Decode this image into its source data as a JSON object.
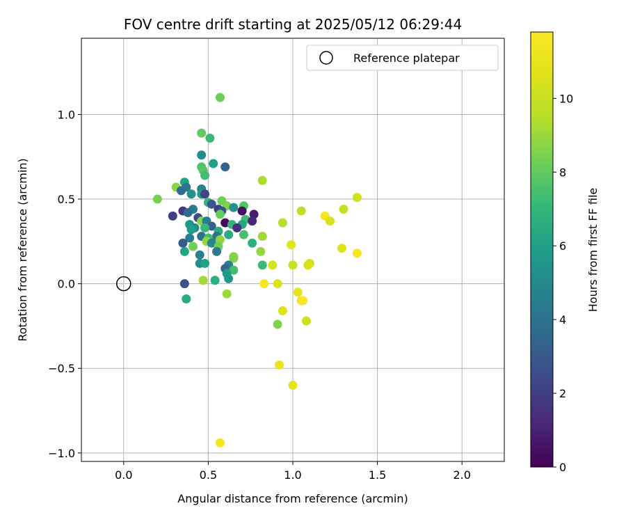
{
  "chart_data": {
    "type": "scatter",
    "title": "FOV centre drift starting at 2025/05/12 06:29:44",
    "xlabel": "Angular distance from reference (arcmin)",
    "ylabel": "Rotation from reference (arcmin)",
    "xlim": [
      -0.25,
      2.25
    ],
    "ylim": [
      -1.05,
      1.45
    ],
    "xticks": [
      0.0,
      0.5,
      1.0,
      1.5,
      2.0
    ],
    "xtick_labels": [
      "0.0",
      "0.5",
      "1.0",
      "1.5",
      "2.0"
    ],
    "yticks": [
      -1.0,
      -0.5,
      0.0,
      0.5,
      1.0
    ],
    "ytick_labels": [
      "−1.0",
      "−0.5",
      "0.0",
      "0.5",
      "1.0"
    ],
    "grid": true,
    "legend": {
      "position": "top-right",
      "entries": [
        "Reference platepar"
      ]
    },
    "reference_point": {
      "x": 0.0,
      "y": 0.0,
      "marker": "open-circle"
    },
    "colorbar": {
      "label": "Hours from first FF file",
      "range": [
        0,
        11.8
      ],
      "ticks": [
        0,
        2,
        4,
        6,
        8,
        10
      ],
      "tick_labels": [
        "0",
        "2",
        "4",
        "6",
        "8",
        "10"
      ],
      "colormap": "viridis"
    },
    "points": [
      {
        "x": 0.57,
        "y": 1.1,
        "h": 8.2
      },
      {
        "x": 0.46,
        "y": 0.89,
        "h": 8.0
      },
      {
        "x": 0.51,
        "y": 0.86,
        "h": 7.2
      },
      {
        "x": 0.46,
        "y": 0.76,
        "h": 5.2
      },
      {
        "x": 0.53,
        "y": 0.71,
        "h": 6.0
      },
      {
        "x": 0.6,
        "y": 0.69,
        "h": 3.4
      },
      {
        "x": 0.46,
        "y": 0.69,
        "h": 7.6
      },
      {
        "x": 0.47,
        "y": 0.67,
        "h": 7.8
      },
      {
        "x": 0.48,
        "y": 0.64,
        "h": 7.4
      },
      {
        "x": 0.82,
        "y": 0.61,
        "h": 9.3
      },
      {
        "x": 0.36,
        "y": 0.6,
        "h": 6.2
      },
      {
        "x": 0.31,
        "y": 0.57,
        "h": 8.7
      },
      {
        "x": 0.37,
        "y": 0.57,
        "h": 4.2
      },
      {
        "x": 0.46,
        "y": 0.56,
        "h": 4.8
      },
      {
        "x": 0.34,
        "y": 0.55,
        "h": 3.8
      },
      {
        "x": 0.4,
        "y": 0.53,
        "h": 5.4
      },
      {
        "x": 0.46,
        "y": 0.53,
        "h": 5.8
      },
      {
        "x": 0.48,
        "y": 0.53,
        "h": 2.2
      },
      {
        "x": 0.2,
        "y": 0.5,
        "h": 8.4
      },
      {
        "x": 0.58,
        "y": 0.49,
        "h": 8.3
      },
      {
        "x": 0.5,
        "y": 0.48,
        "h": 6.9
      },
      {
        "x": 0.52,
        "y": 0.47,
        "h": 3.0
      },
      {
        "x": 0.61,
        "y": 0.46,
        "h": 8.5
      },
      {
        "x": 0.71,
        "y": 0.46,
        "h": 7.7
      },
      {
        "x": 0.65,
        "y": 0.45,
        "h": 5.3
      },
      {
        "x": 0.56,
        "y": 0.44,
        "h": 1.9
      },
      {
        "x": 0.41,
        "y": 0.44,
        "h": 4.4
      },
      {
        "x": 0.7,
        "y": 0.43,
        "h": 0.5
      },
      {
        "x": 0.58,
        "y": 0.43,
        "h": 2.6
      },
      {
        "x": 0.35,
        "y": 0.43,
        "h": 1.7
      },
      {
        "x": 0.38,
        "y": 0.42,
        "h": 3.6
      },
      {
        "x": 0.57,
        "y": 0.41,
        "h": 8.1
      },
      {
        "x": 0.77,
        "y": 0.41,
        "h": 0.8
      },
      {
        "x": 0.29,
        "y": 0.4,
        "h": 2.0
      },
      {
        "x": 0.44,
        "y": 0.39,
        "h": 2.3
      },
      {
        "x": 0.72,
        "y": 0.38,
        "h": 7.3
      },
      {
        "x": 0.46,
        "y": 0.37,
        "h": 8.6
      },
      {
        "x": 0.76,
        "y": 0.37,
        "h": 1.2
      },
      {
        "x": 0.49,
        "y": 0.37,
        "h": 4.6
      },
      {
        "x": 0.6,
        "y": 0.36,
        "h": 0.3
      },
      {
        "x": 0.7,
        "y": 0.35,
        "h": 6.3
      },
      {
        "x": 0.39,
        "y": 0.35,
        "h": 5.6
      },
      {
        "x": 0.64,
        "y": 0.35,
        "h": 7.0
      },
      {
        "x": 0.52,
        "y": 0.34,
        "h": 3.3
      },
      {
        "x": 0.42,
        "y": 0.33,
        "h": 5.1
      },
      {
        "x": 0.67,
        "y": 0.33,
        "h": 1.5
      },
      {
        "x": 0.48,
        "y": 0.33,
        "h": 7.1
      },
      {
        "x": 0.4,
        "y": 0.32,
        "h": 5.9
      },
      {
        "x": 0.56,
        "y": 0.31,
        "h": 6.6
      },
      {
        "x": 0.62,
        "y": 0.29,
        "h": 6.5
      },
      {
        "x": 0.71,
        "y": 0.29,
        "h": 7.5
      },
      {
        "x": 0.82,
        "y": 0.28,
        "h": 9.1
      },
      {
        "x": 0.46,
        "y": 0.28,
        "h": 3.9
      },
      {
        "x": 0.55,
        "y": 0.28,
        "h": 4.0
      },
      {
        "x": 0.39,
        "y": 0.27,
        "h": 4.5
      },
      {
        "x": 0.5,
        "y": 0.27,
        "h": 7.3
      },
      {
        "x": 0.57,
        "y": 0.26,
        "h": 8.8
      },
      {
        "x": 0.49,
        "y": 0.25,
        "h": 8.9
      },
      {
        "x": 0.52,
        "y": 0.24,
        "h": 4.9
      },
      {
        "x": 0.76,
        "y": 0.24,
        "h": 6.7
      },
      {
        "x": 0.35,
        "y": 0.24,
        "h": 3.1
      },
      {
        "x": 0.56,
        "y": 0.22,
        "h": 8.2
      },
      {
        "x": 0.41,
        "y": 0.22,
        "h": 8.3
      },
      {
        "x": 0.99,
        "y": 0.23,
        "h": 10.8
      },
      {
        "x": 0.36,
        "y": 0.19,
        "h": 6.2
      },
      {
        "x": 0.55,
        "y": 0.19,
        "h": 4.3
      },
      {
        "x": 0.81,
        "y": 0.19,
        "h": 8.9
      },
      {
        "x": 0.45,
        "y": 0.17,
        "h": 4.7
      },
      {
        "x": 0.65,
        "y": 0.16,
        "h": 8.7
      },
      {
        "x": 0.65,
        "y": 0.15,
        "h": 8.6
      },
      {
        "x": 0.45,
        "y": 0.12,
        "h": 5.1
      },
      {
        "x": 0.48,
        "y": 0.12,
        "h": 6.1
      },
      {
        "x": 0.82,
        "y": 0.11,
        "h": 7.2
      },
      {
        "x": 0.88,
        "y": 0.11,
        "h": 10.3
      },
      {
        "x": 1.0,
        "y": 0.11,
        "h": 10.0
      },
      {
        "x": 1.1,
        "y": 0.12,
        "h": 10.2
      },
      {
        "x": 1.09,
        "y": 0.11,
        "h": 10.5
      },
      {
        "x": 0.62,
        "y": 0.11,
        "h": 4.6
      },
      {
        "x": 0.6,
        "y": 0.09,
        "h": 3.5
      },
      {
        "x": 0.65,
        "y": 0.08,
        "h": 7.4
      },
      {
        "x": 0.61,
        "y": 0.06,
        "h": 5.8
      },
      {
        "x": 0.62,
        "y": 0.03,
        "h": 5.6
      },
      {
        "x": 0.47,
        "y": 0.02,
        "h": 9.1
      },
      {
        "x": 0.54,
        "y": 0.02,
        "h": 6.7
      },
      {
        "x": 0.36,
        "y": 0.0,
        "h": 2.7
      },
      {
        "x": 0.83,
        "y": 0.0,
        "h": 11.6
      },
      {
        "x": 0.91,
        "y": 0.0,
        "h": 10.6
      },
      {
        "x": 1.03,
        "y": -0.05,
        "h": 11.0
      },
      {
        "x": 0.61,
        "y": -0.06,
        "h": 9.0
      },
      {
        "x": 0.37,
        "y": -0.09,
        "h": 6.5
      },
      {
        "x": 1.05,
        "y": -0.1,
        "h": 11.3
      },
      {
        "x": 1.06,
        "y": -0.1,
        "h": 11.7
      },
      {
        "x": 0.94,
        "y": -0.16,
        "h": 10.7
      },
      {
        "x": 1.08,
        "y": -0.22,
        "h": 10.1
      },
      {
        "x": 0.91,
        "y": -0.24,
        "h": 8.6
      },
      {
        "x": 0.92,
        "y": -0.48,
        "h": 11.2
      },
      {
        "x": 1.0,
        "y": -0.6,
        "h": 10.9
      },
      {
        "x": 0.57,
        "y": -0.94,
        "h": 11.4
      },
      {
        "x": 1.05,
        "y": 0.43,
        "h": 9.7
      },
      {
        "x": 0.94,
        "y": 0.36,
        "h": 9.5
      },
      {
        "x": 1.19,
        "y": 0.4,
        "h": 11.5
      },
      {
        "x": 1.22,
        "y": 0.37,
        "h": 10.4
      },
      {
        "x": 1.3,
        "y": 0.44,
        "h": 9.9
      },
      {
        "x": 1.38,
        "y": 0.51,
        "h": 10.2
      },
      {
        "x": 1.29,
        "y": 0.21,
        "h": 10.6
      },
      {
        "x": 1.38,
        "y": 0.18,
        "h": 11.6
      }
    ]
  }
}
